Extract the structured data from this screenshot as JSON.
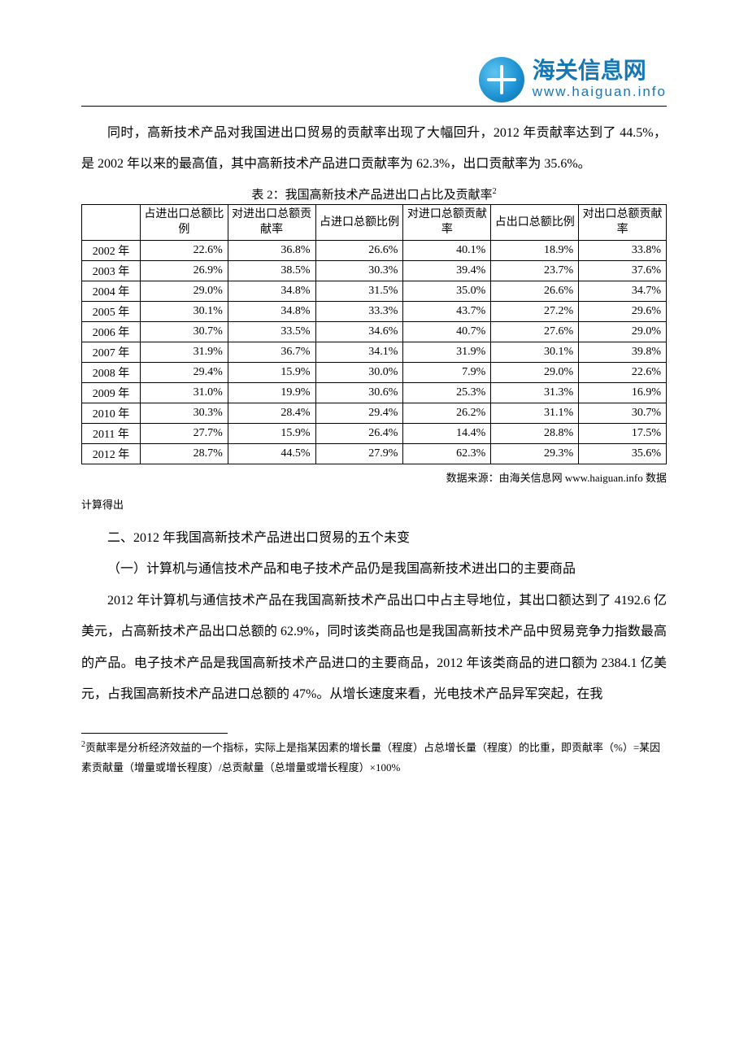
{
  "logo": {
    "cn": "海关信息网",
    "url": "www.haiguan.info"
  },
  "paragraphs": {
    "p1": "同时，高新技术产品对我国进出口贸易的贡献率出现了大幅回升，2012 年贡献率达到了 44.5%，是 2002 年以来的最高值，其中高新技术产品进口贡献率为 62.3%，出口贡献率为 35.6%。"
  },
  "table": {
    "caption": "表 2：我国高新技术产品进出口占比及贡献率",
    "caption_sup": "2",
    "columns": [
      "占进出口总额比例",
      "对进出口总额贡献率",
      "占进口总额比例",
      "对进口总额贡献率",
      "占出口总额比例",
      "对出口总额贡献率"
    ],
    "rows": [
      {
        "year": "2002 年",
        "v": [
          "22.6%",
          "36.8%",
          "26.6%",
          "40.1%",
          "18.9%",
          "33.8%"
        ]
      },
      {
        "year": "2003 年",
        "v": [
          "26.9%",
          "38.5%",
          "30.3%",
          "39.4%",
          "23.7%",
          "37.6%"
        ]
      },
      {
        "year": "2004 年",
        "v": [
          "29.0%",
          "34.8%",
          "31.5%",
          "35.0%",
          "26.6%",
          "34.7%"
        ]
      },
      {
        "year": "2005 年",
        "v": [
          "30.1%",
          "34.8%",
          "33.3%",
          "43.7%",
          "27.2%",
          "29.6%"
        ]
      },
      {
        "year": "2006 年",
        "v": [
          "30.7%",
          "33.5%",
          "34.6%",
          "40.7%",
          "27.6%",
          "29.0%"
        ]
      },
      {
        "year": "2007 年",
        "v": [
          "31.9%",
          "36.7%",
          "34.1%",
          "31.9%",
          "30.1%",
          "39.8%"
        ]
      },
      {
        "year": "2008 年",
        "v": [
          "29.4%",
          "15.9%",
          "30.0%",
          "7.9%",
          "29.0%",
          "22.6%"
        ]
      },
      {
        "year": "2009 年",
        "v": [
          "31.0%",
          "19.9%",
          "30.6%",
          "25.3%",
          "31.3%",
          "16.9%"
        ]
      },
      {
        "year": "2010 年",
        "v": [
          "30.3%",
          "28.4%",
          "29.4%",
          "26.2%",
          "31.1%",
          "30.7%"
        ]
      },
      {
        "year": "2011 年",
        "v": [
          "27.7%",
          "15.9%",
          "26.4%",
          "14.4%",
          "28.8%",
          "17.5%"
        ]
      },
      {
        "year": "2012 年",
        "v": [
          "28.7%",
          "44.5%",
          "27.9%",
          "62.3%",
          "29.3%",
          "35.6%"
        ]
      }
    ],
    "source": "数据来源：由海关信息网 www.haiguan.info 数据",
    "calc_note": "计算得出",
    "border_color": "#000000",
    "header_bg": "#ffffff",
    "col_align": [
      "center",
      "right",
      "right",
      "right",
      "right",
      "right",
      "right"
    ]
  },
  "headings": {
    "h2": "二、2012 年我国高新技术产品进出口贸易的五个未变",
    "h2_1": "（一）计算机与通信技术产品和电子技术产品仍是我国高新技术进出口的主要商品"
  },
  "body2": "2012 年计算机与通信技术产品在我国高新技术产品出口中占主导地位，其出口额达到了 4192.6 亿美元，占高新技术产品出口总额的 62.9%，同时该类商品也是我国高新技术产品中贸易竞争力指数最高的产品。电子技术产品是我国高新技术产品进口的主要商品，2012 年该类商品的进口额为 2384.1 亿美元，占我国高新技术产品进口总额的 47%。从增长速度来看，光电技术产品异军突起，在我",
  "footnote": {
    "marker": "2",
    "text": "贡献率是分析经济效益的一个指标，实际上是指某因素的增长量（程度）占总增长量（程度）的比重，即贡献率（%）=某因素贡献量（增量或增长程度）/总贡献量（总增量或增长程度）×100%"
  },
  "colors": {
    "text": "#000000",
    "logo": "#1578b5",
    "background": "#ffffff"
  },
  "font_sizes": {
    "body": 16,
    "table": 14,
    "caption": 15,
    "footnote": 13,
    "logo_cn": 28,
    "logo_url": 17
  }
}
